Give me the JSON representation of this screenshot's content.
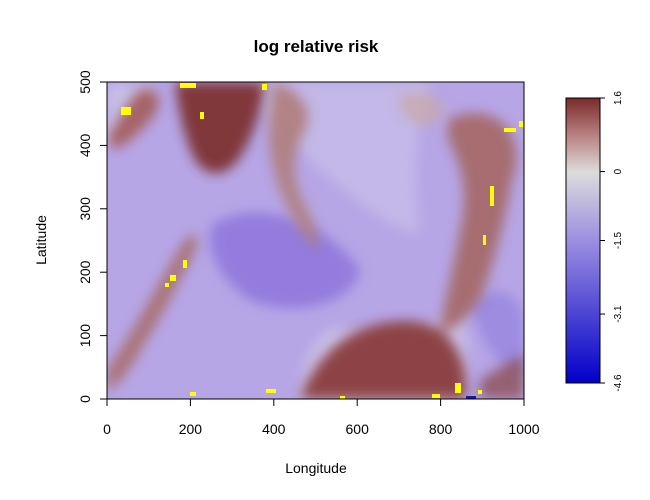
{
  "chart_data": {
    "type": "heatmap",
    "title": "log relative risk",
    "xlabel": "Longitude",
    "ylabel": "Latitude",
    "xlim": [
      0,
      1000
    ],
    "ylim": [
      0,
      500
    ],
    "x_ticks": [
      0,
      200,
      400,
      600,
      800,
      1000
    ],
    "y_ticks": [
      0,
      100,
      200,
      300,
      400,
      500
    ],
    "colorbar": {
      "range": [
        -4.6,
        1.6
      ],
      "ticks": [
        1.6,
        0,
        -1.5,
        -3.1,
        -4.6
      ],
      "tick_labels": [
        "1.6",
        "0",
        "-1.5",
        "-3.1",
        "-4.6"
      ],
      "colors": {
        "low": "#0000c8",
        "mid": "#dcdcdc",
        "high": "#7b2a2a"
      },
      "highlight_color": "#ffff00"
    }
  }
}
